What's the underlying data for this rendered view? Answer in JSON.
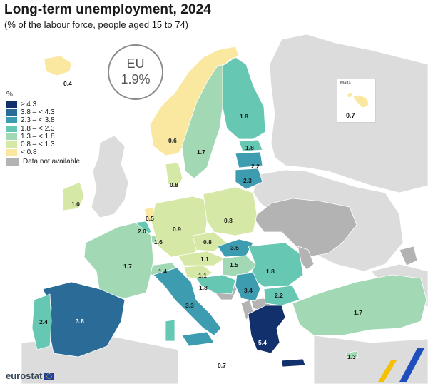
{
  "header": {
    "title": "Long-term unemployment, 2024",
    "subtitle": "(% of the labour force, people aged 15 to 74)"
  },
  "eu_badge": {
    "label": "EU",
    "value": "1.9%"
  },
  "legend": {
    "unit": "%",
    "classes": [
      {
        "label": "≥ 4.3",
        "color": "#12306b"
      },
      {
        "label": "3.8 – < 4.3",
        "color": "#2a6b98"
      },
      {
        "label": "2.3 – < 3.8",
        "color": "#3e9cb0"
      },
      {
        "label": "1.8 – < 2.3",
        "color": "#66c7b2"
      },
      {
        "label": "1.3 – < 1.8",
        "color": "#a2d9b4"
      },
      {
        "label": "0.8 – < 1.3",
        "color": "#d6e8a6"
      },
      {
        "label": "< 0.8",
        "color": "#fbe8a0"
      }
    ],
    "not_available": {
      "label": "Data not available",
      "color": "#b3b3b3"
    }
  },
  "inset": {
    "name": "Malta",
    "value": "0.7"
  },
  "countries": {
    "iceland": "0.4",
    "norway": "0.6",
    "sweden": "1.7",
    "finland": "1.8",
    "estonia": "1.8",
    "latvia": "2.2",
    "lithuania": "2.3",
    "denmark": "0.8",
    "ireland": "1.0",
    "netherlands": "0.5",
    "belgium": "2.0",
    "luxembourg": "1.6",
    "germany": "0.9",
    "poland": "0.8",
    "czechia": "0.8",
    "slovakia": "3.5",
    "austria": "1.1",
    "hungary": "1.5",
    "switzerland": "1.4",
    "france": "1.7",
    "slovenia": "1.1",
    "croatia": "1.8",
    "romania": "1.8",
    "serbia": "3.4",
    "bulgaria": "2.2",
    "italy": "3.3",
    "spain": "3.8",
    "portugal": "2.4",
    "greece": "5.4",
    "turkey": "1.7",
    "cyprus": "1.3",
    "sicily_malta_area": "0.7"
  },
  "footer": {
    "brand": "eurostat"
  }
}
